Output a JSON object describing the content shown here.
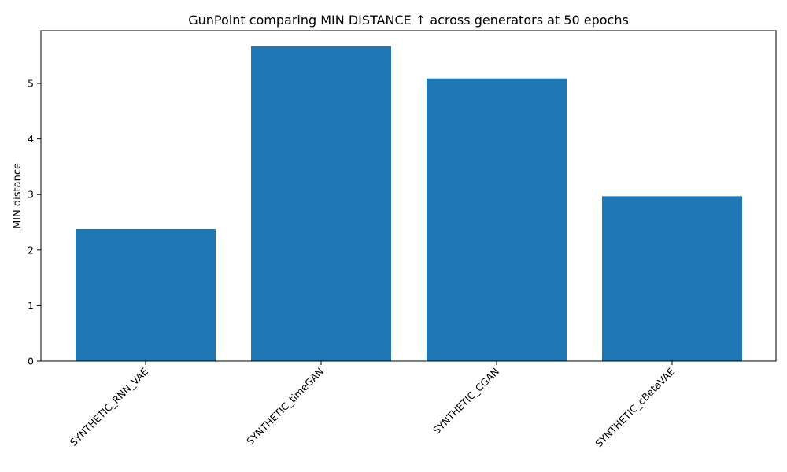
{
  "chart_data": {
    "type": "bar",
    "title": "GunPoint comparing MIN DISTANCE ↑  across generators at 50 epochs",
    "xlabel": "",
    "ylabel": "MIN distance",
    "categories": [
      "SYNTHETIC_RNN_VAE",
      "SYNTHETIC_timeGAN",
      "SYNTHETIC_CGAN",
      "SYNTHETIC_cBetaVAE"
    ],
    "values": [
      2.38,
      5.67,
      5.09,
      2.97
    ],
    "ylim": [
      0,
      5.95
    ],
    "yticks": [
      0,
      1,
      2,
      3,
      4,
      5
    ],
    "bar_color": "#1f77b4",
    "grid": false,
    "legend": "none"
  }
}
